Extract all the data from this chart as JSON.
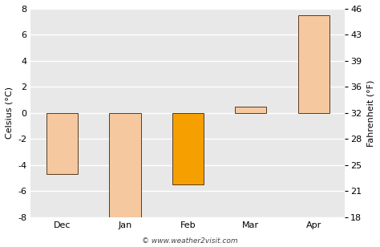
{
  "categories": [
    "Dec",
    "Jan",
    "Feb",
    "Mar",
    "Apr"
  ],
  "values": [
    -4.7,
    -8.0,
    -5.5,
    0.5,
    7.5
  ],
  "bar_colors": [
    "#f5c8a0",
    "#f5c8a0",
    "#f5a000",
    "#f5c8a0",
    "#f5c8a0"
  ],
  "bar_edgecolors": [
    "#5a3a1a",
    "#5a3a1a",
    "#5a3a1a",
    "#5a3a1a",
    "#5a3a1a"
  ],
  "ylim_celsius": [
    -8,
    8
  ],
  "yticks_celsius": [
    -8,
    -6,
    -4,
    -2,
    0,
    2,
    4,
    6,
    8
  ],
  "yticks_fahrenheit": [
    18,
    21,
    25,
    28,
    32,
    36,
    39,
    43,
    46
  ],
  "ylabel_left": "Celsius (°C)",
  "ylabel_right": "Fahrenheit (°F)",
  "plot_bg_color": "#e8e8e8",
  "fig_bg_color": "#ffffff",
  "grid_color": "#ffffff",
  "watermark": "© www.weather2visit.com",
  "bar_width": 0.5
}
